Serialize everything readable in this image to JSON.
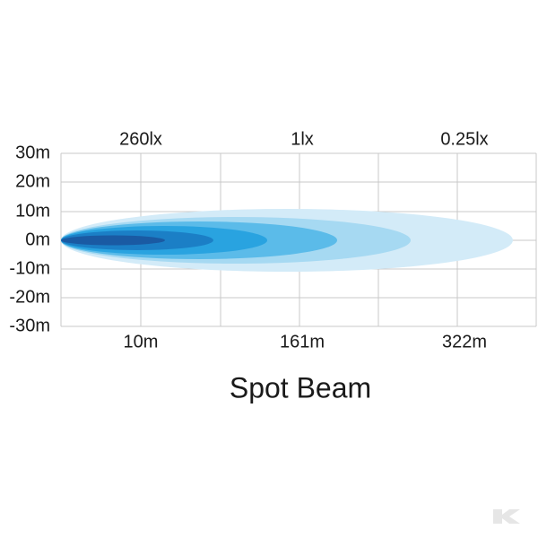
{
  "title": "Spot Beam",
  "y_labels": [
    "30m",
    "20m",
    "10m",
    "0m",
    "-10m",
    "-20m",
    "-30m"
  ],
  "lux_labels": [
    "260lx",
    "1lx",
    "0.25lx"
  ],
  "distance_labels": [
    "10m",
    "161m",
    "322m"
  ]
}
